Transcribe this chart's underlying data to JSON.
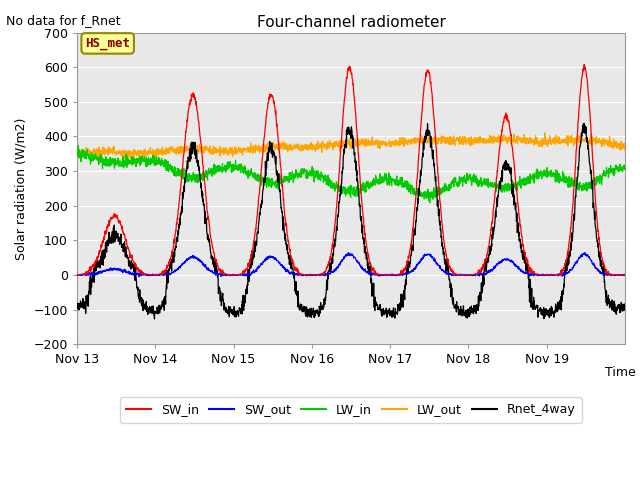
{
  "title": "Four-channel radiometer",
  "top_left_text": "No data for f_Rnet",
  "ylabel": "Solar radiation (W/m2)",
  "xlabel": "Time",
  "annotation_label": "HS_met",
  "annotation_color": "#8B0000",
  "annotation_bg": "#FFFF99",
  "annotation_edge": "#8B8B00",
  "ylim": [
    -200,
    700
  ],
  "yticks": [
    -200,
    -100,
    0,
    100,
    200,
    300,
    400,
    500,
    600,
    700
  ],
  "xtick_labels": [
    "Nov 13",
    "Nov 14",
    "Nov 15",
    "Nov 16",
    "Nov 17",
    "Nov 18",
    "Nov 19"
  ],
  "colors": {
    "SW_in": "#FF0000",
    "SW_out": "#0000FF",
    "LW_in": "#00CC00",
    "LW_out": "#FFA500",
    "Rnet_4way": "#000000"
  },
  "bg_color": "#E8E8E8",
  "fig_bg": "#FFFFFF",
  "grid_color": "#FFFFFF",
  "n_days": 7,
  "n_pts": 2016,
  "legend_labels": [
    "SW_in",
    "SW_out",
    "LW_in",
    "LW_out",
    "Rnet_4way"
  ]
}
